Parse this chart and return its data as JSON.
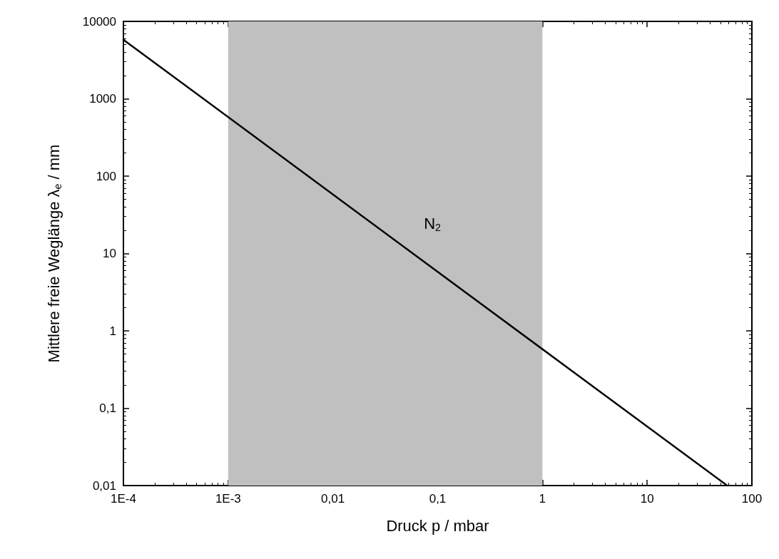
{
  "chart_data": {
    "type": "line",
    "xlabel": "Druck p / mbar",
    "ylabel": "Mittlere freie Weglänge λ$_{e}$ / mm",
    "log": "xy",
    "x": [
      0.0001,
      58
    ],
    "series": [
      {
        "name": "N$_{2}$",
        "color": "#000000",
        "values": [
          5800,
          0.01
        ]
      }
    ],
    "xlim": [
      0.0001,
      100
    ],
    "xticks": [
      {
        "value": 0.0001,
        "label": "1E-4"
      },
      {
        "value": 0.001,
        "label": "1E-3"
      },
      {
        "value": 0.01,
        "label": "0,01"
      },
      {
        "value": 0.1,
        "label": "0,1"
      },
      1,
      10,
      100
    ],
    "ylim": [
      0.01,
      10000
    ],
    "yticks": [
      {
        "value": 0.01,
        "label": "0,01"
      },
      {
        "value": 0.1,
        "label": "0,1"
      },
      1,
      10,
      100,
      1000,
      10000
    ],
    "bands": [
      {
        "axis": "x",
        "from": 0.001,
        "to": 1,
        "color": "#c0c0c0"
      }
    ],
    "grid": false,
    "marker": "none",
    "line_style": "solid",
    "legend": false
  }
}
